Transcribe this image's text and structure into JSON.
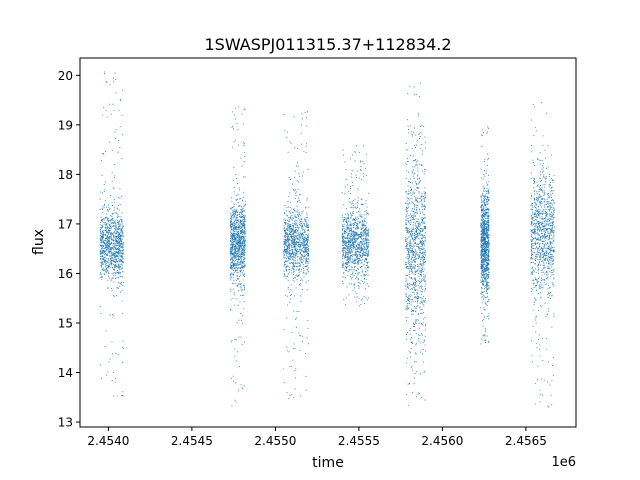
{
  "chart_data": {
    "type": "scatter",
    "title": "1SWASPJ011315.37+112834.2",
    "xlabel": "time",
    "ylabel": "flux",
    "x_offset_label": "1e6",
    "xlim": [
      2.45383,
      2.4568
    ],
    "ylim": [
      12.9,
      20.35
    ],
    "x_ticks": [
      {
        "value": 2.454,
        "label": "2.4540"
      },
      {
        "value": 2.4545,
        "label": "2.4545"
      },
      {
        "value": 2.455,
        "label": "2.4550"
      },
      {
        "value": 2.4555,
        "label": "2.4555"
      },
      {
        "value": 2.456,
        "label": "2.4560"
      },
      {
        "value": 2.4565,
        "label": "2.4565"
      }
    ],
    "y_ticks": [
      {
        "value": 13,
        "label": "13"
      },
      {
        "value": 14,
        "label": "14"
      },
      {
        "value": 15,
        "label": "15"
      },
      {
        "value": 16,
        "label": "16"
      },
      {
        "value": 17,
        "label": "17"
      },
      {
        "value": 18,
        "label": "18"
      },
      {
        "value": 19,
        "label": "19"
      },
      {
        "value": 20,
        "label": "20"
      }
    ],
    "grid": false,
    "marker_color": "#1f77b4",
    "observing_seasons": [
      {
        "x_start": 2.45395,
        "x_end": 2.45409,
        "y_center": 16.55,
        "y_spread": 0.35,
        "y_min": 13.5,
        "y_max": 20.1
      },
      {
        "x_start": 2.45473,
        "x_end": 2.45482,
        "y_center": 16.6,
        "y_spread": 0.4,
        "y_min": 13.3,
        "y_max": 19.4
      },
      {
        "x_start": 2.45505,
        "x_end": 2.4552,
        "y_center": 16.6,
        "y_spread": 0.35,
        "y_min": 13.4,
        "y_max": 19.3
      },
      {
        "x_start": 2.4554,
        "x_end": 2.45556,
        "y_center": 16.6,
        "y_spread": 0.35,
        "y_min": 15.3,
        "y_max": 18.6
      },
      {
        "x_start": 2.45578,
        "x_end": 2.4559,
        "y_center": 16.5,
        "y_spread": 0.9,
        "y_min": 13.2,
        "y_max": 20.05
      },
      {
        "x_start": 2.45623,
        "x_end": 2.45628,
        "y_center": 16.6,
        "y_spread": 0.5,
        "y_min": 14.5,
        "y_max": 19.0
      },
      {
        "x_start": 2.45653,
        "x_end": 2.45667,
        "y_center": 16.8,
        "y_spread": 0.6,
        "y_min": 13.3,
        "y_max": 19.5
      }
    ]
  }
}
